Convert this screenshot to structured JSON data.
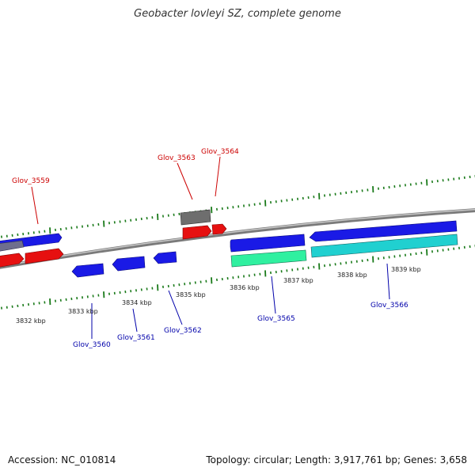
{
  "title": "Geobacter lovleyi SZ, complete genome",
  "footer": {
    "accession": "Accession: NC_010814",
    "summary": "Topology: circular; Length: 3,917,761 bp; Genes: 3,658"
  },
  "colors": {
    "backbone": "#8a8a8a",
    "tick": "#1a7a1a",
    "forward_label": "#cc0000",
    "reverse_label": "#0000aa",
    "cds_blue": "#1a1ae6",
    "cds_red": "#e61010",
    "cds_gray": "#6e6e6e",
    "cds_cyan": "#20d0d0",
    "cds_green": "#30f0a0"
  },
  "coordinates": [
    {
      "label": "3832 kbp"
    },
    {
      "label": "3833 kbp"
    },
    {
      "label": "3834 kbp"
    },
    {
      "label": "3835 kbp"
    },
    {
      "label": "3836 kbp"
    },
    {
      "label": "3837 kbp"
    },
    {
      "label": "3838 kbp"
    },
    {
      "label": "3839 kbp"
    }
  ],
  "gene_labels": [
    {
      "name": "Glov_3559",
      "strand": "forward"
    },
    {
      "name": "Glov_3563",
      "strand": "forward"
    },
    {
      "name": "Glov_3564",
      "strand": "forward"
    },
    {
      "name": "Glov_3560",
      "strand": "reverse"
    },
    {
      "name": "Glov_3561",
      "strand": "reverse"
    },
    {
      "name": "Glov_3562",
      "strand": "reverse"
    },
    {
      "name": "Glov_3565",
      "strand": "reverse"
    },
    {
      "name": "Glov_3566",
      "strand": "reverse"
    }
  ]
}
